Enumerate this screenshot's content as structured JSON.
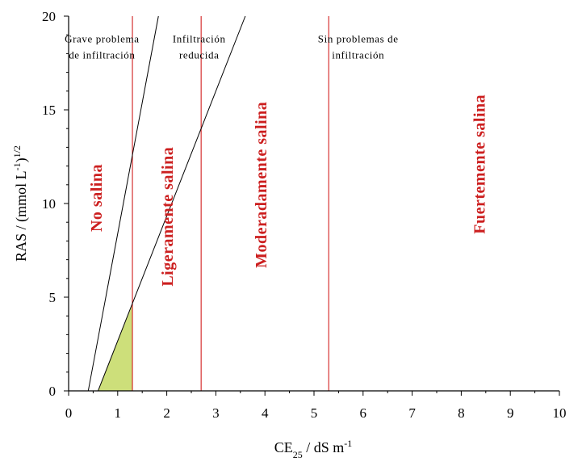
{
  "chart_data": {
    "type": "line",
    "title": "",
    "xlabel": {
      "base": "CE",
      "sub": "25",
      "rest": " / dS m",
      "sup": "-1"
    },
    "ylabel": {
      "base": "RAS / (mmol L",
      "sup1": "-1",
      "mid": ")",
      "sup2": "1/2"
    },
    "xlim": [
      0,
      10
    ],
    "ylim": [
      0,
      20
    ],
    "x_ticks": [
      "0",
      "1",
      "2",
      "3",
      "4",
      "5",
      "6",
      "7",
      "8",
      "9",
      "10"
    ],
    "y_ticks": [
      "0",
      "5",
      "10",
      "15",
      "20"
    ],
    "vertical_lines": [
      1.3,
      2.7,
      5.3
    ],
    "boundary_lines": [
      {
        "x": [
          0.4,
          1.83
        ],
        "y": [
          0,
          20
        ]
      },
      {
        "x": [
          0.6,
          3.6
        ],
        "y": [
          0,
          20
        ]
      }
    ],
    "shaded_region": {
      "x": [
        0.6,
        1.3,
        1.3
      ],
      "y": [
        0,
        0,
        4.6
      ]
    },
    "zone_labels": [
      {
        "lines": [
          "Grave problema",
          "de infiltración"
        ],
        "x": 0.68,
        "y": 18.6
      },
      {
        "lines": [
          "Infiltración",
          "reducida"
        ],
        "x": 2.66,
        "y": 18.6
      },
      {
        "lines": [
          "Sin problemas de",
          "infiltración"
        ],
        "x": 5.9,
        "y": 18.6
      }
    ],
    "salinity_labels": [
      {
        "text": "No salina",
        "x": 0.6,
        "y": 10.3
      },
      {
        "text": "Ligeramente salina",
        "x": 2.05,
        "y": 9.3
      },
      {
        "text": "Moderadamente salina",
        "x": 3.95,
        "y": 11
      },
      {
        "text": "Fuertemente salina",
        "x": 8.4,
        "y": 12.1
      }
    ],
    "colors": {
      "lines": "#d22020",
      "labels": "#cc1f1f",
      "shade": "#cddf7a",
      "axis": "#000000"
    }
  }
}
